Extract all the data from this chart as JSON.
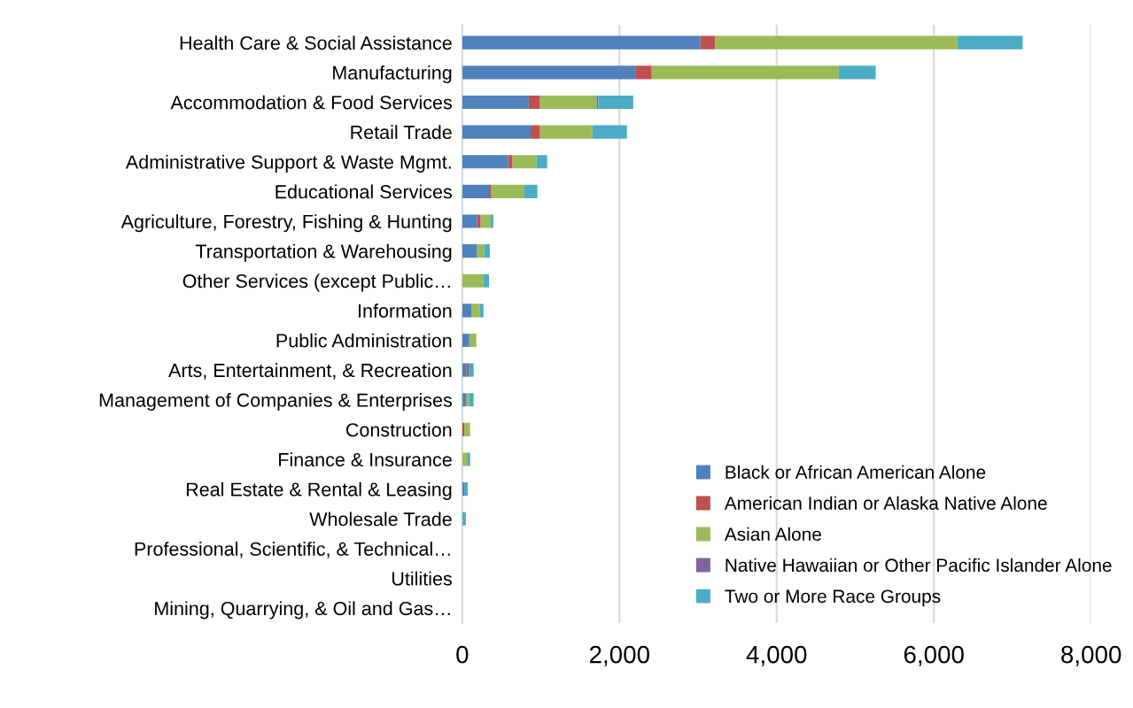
{
  "chart_data": {
    "type": "bar",
    "orientation": "horizontal",
    "stacked": true,
    "categories": [
      "Health Care & Social Assistance",
      "Manufacturing",
      "Accommodation & Food Services",
      "Retail Trade",
      "Administrative Support & Waste Mgmt.",
      "Educational Services",
      "Agriculture, Forestry, Fishing & Hunting",
      "Transportation & Warehousing",
      "Other Services (except Public…",
      "Information",
      "Public Administration",
      "Arts, Entertainment, & Recreation",
      "Management of Companies & Enterprises",
      "Construction",
      "Finance & Insurance",
      "Real Estate & Rental & Leasing",
      "Wholesale Trade",
      "Professional, Scientific, & Technical…",
      "Utilities",
      "Mining, Quarrying, & Oil and Gas…"
    ],
    "series": [
      {
        "name": "Black or African American Alone",
        "color": "#4f81bd",
        "values": [
          3030,
          2210,
          845,
          870,
          585,
          340,
          190,
          190,
          0,
          115,
          90,
          55,
          55,
          0,
          0,
          25,
          0,
          0,
          0,
          0
        ]
      },
      {
        "name": "American Indian or Alaska Native Alone",
        "color": "#c0504d",
        "values": [
          190,
          200,
          145,
          120,
          55,
          30,
          45,
          0,
          0,
          0,
          0,
          25,
          0,
          25,
          0,
          0,
          0,
          0,
          0,
          0
        ]
      },
      {
        "name": "Asian Alone",
        "color": "#9bbb59",
        "values": [
          3080,
          2380,
          720,
          665,
          305,
          420,
          125,
          90,
          270,
          110,
          90,
          0,
          35,
          75,
          70,
          0,
          0,
          0,
          0,
          0
        ]
      },
      {
        "name": "Native Hawaiian or Other Pacific Islander Alone",
        "color": "#8064a2",
        "values": [
          0,
          0,
          20,
          0,
          0,
          0,
          0,
          0,
          0,
          0,
          0,
          0,
          0,
          0,
          0,
          0,
          0,
          0,
          0,
          0
        ]
      },
      {
        "name": "Two or More Race Groups",
        "color": "#4bacc6",
        "values": [
          830,
          470,
          445,
          440,
          135,
          165,
          35,
          70,
          70,
          45,
          0,
          65,
          55,
          0,
          30,
          45,
          45,
          0,
          0,
          0
        ]
      }
    ],
    "xlim": [
      0,
      8000
    ],
    "xticks": [
      {
        "value": 0,
        "label": "0"
      },
      {
        "value": 2000,
        "label": "2,000"
      },
      {
        "value": 4000,
        "label": "4,000"
      },
      {
        "value": 6000,
        "label": "6,000"
      },
      {
        "value": 8000,
        "label": "8,000"
      }
    ],
    "grid": "x",
    "legend": "bottom right"
  }
}
